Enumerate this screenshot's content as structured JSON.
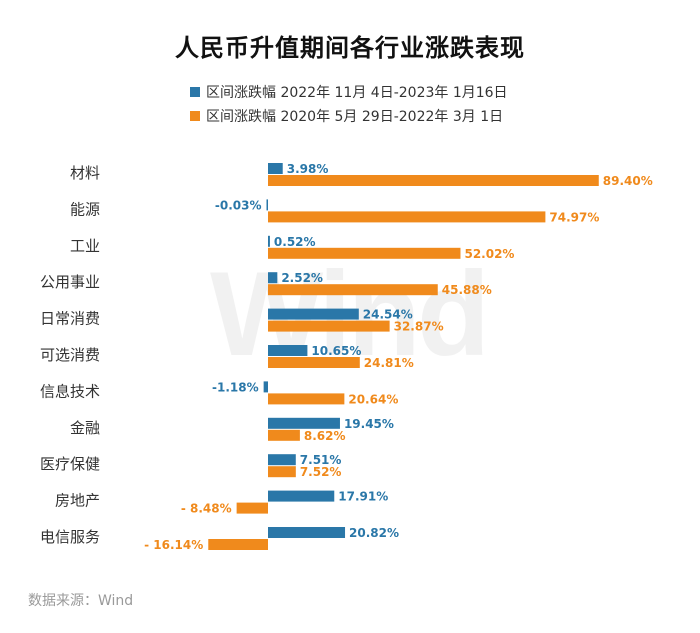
{
  "chart_data": {
    "type": "bar",
    "orientation": "horizontal",
    "title": "人民币升值期间各行业涨跌表现",
    "categories": [
      "材料",
      "能源",
      "工业",
      "公用事业",
      "日常消费",
      "可选消费",
      "信息技术",
      "金融",
      "医疗保健",
      "房地产",
      "电信服务"
    ],
    "series": [
      {
        "name": "区间涨跌幅 2022年 11月 4日-2023年 1月16日",
        "color": "#2a77a8",
        "values": [
          3.98,
          -0.03,
          0.52,
          2.52,
          24.54,
          10.65,
          -1.18,
          19.45,
          7.51,
          17.91,
          20.82
        ],
        "labels": [
          "3.98%",
          "-0.03%",
          "0.52%",
          "2.52%",
          "24.54%",
          "10.65%",
          "-1.18%",
          "19.45%",
          "7.51%",
          "17.91%",
          "20.82%"
        ]
      },
      {
        "name": "区间涨跌幅 2020年 5月 29日-2022年 3月 1日",
        "color": "#f08a1c",
        "values": [
          89.4,
          74.97,
          52.02,
          45.88,
          32.87,
          24.81,
          20.64,
          8.62,
          7.52,
          -8.48,
          -16.14
        ],
        "labels": [
          "89.40%",
          "74.97%",
          "52.02%",
          "45.88%",
          "32.87%",
          "24.81%",
          "20.64%",
          "8.62%",
          "7.52%",
          "- 8.48%",
          "- 16.14%"
        ]
      }
    ],
    "legend_position": "top",
    "grid": false
  },
  "watermark": "Wind",
  "source": "数据来源：Wind"
}
